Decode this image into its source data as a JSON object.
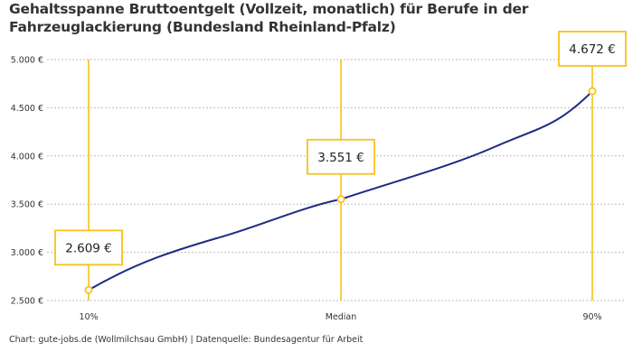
{
  "title": "Gehaltsspanne Bruttoentgelt (Vollzeit, monatlich) für Berufe in der Fahrzeuglackierung (Bundesland Rheinland-Pfalz)",
  "footer": "Chart: gute-jobs.de (Wollmilchsau GmbH) | Datenquelle: Bundesagentur für Arbeit",
  "colors": {
    "line": "#1c2b85",
    "accent": "#f6c21c",
    "grid": "#bdbdbd"
  },
  "chart_data": {
    "type": "line",
    "categories": [
      "10%",
      "Median",
      "90%"
    ],
    "values": [
      2609,
      3551,
      4672
    ],
    "value_labels": [
      "2.609 €",
      "3.551 €",
      "4.672 €"
    ],
    "y_ticks": [
      2500,
      3000,
      3500,
      4000,
      4500,
      5000
    ],
    "y_tick_labels": [
      "2.500 €",
      "3.000 €",
      "3.500 €",
      "4.000 €",
      "4.500 €",
      "5.000 €"
    ],
    "ylim": [
      2500,
      5000
    ],
    "grid": true,
    "xlabel": "",
    "ylabel": ""
  }
}
